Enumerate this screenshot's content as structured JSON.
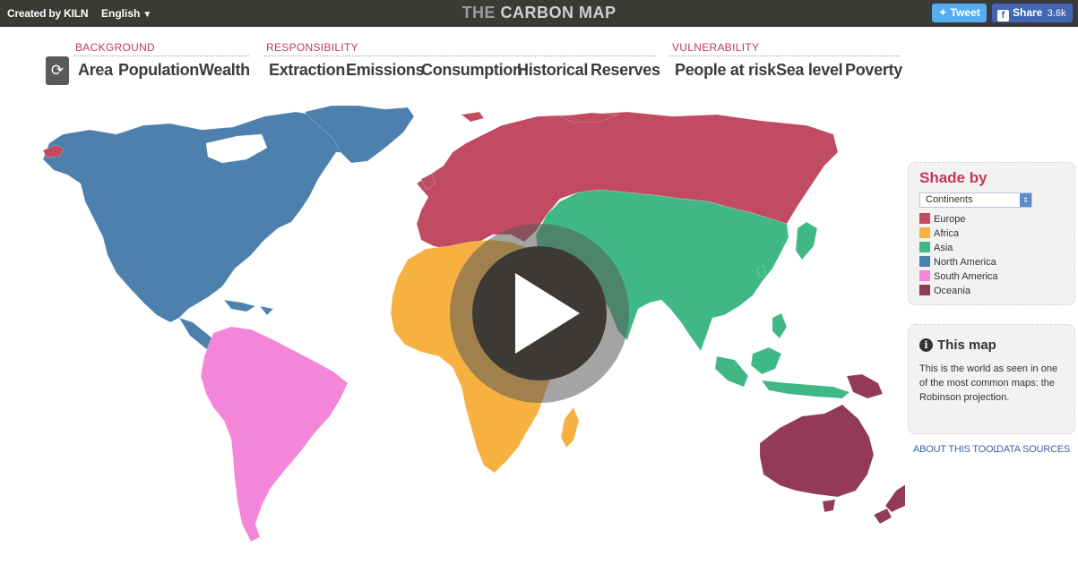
{
  "topbar": {
    "created_by": "Created by",
    "brand": "KILN",
    "language": "English",
    "title_prefix": "THE",
    "title_main": "CARBON MAP",
    "tweet_label": "Tweet",
    "share_label": "Share",
    "share_count": "3.6k"
  },
  "nav": {
    "groups": [
      {
        "label": "BACKGROUND",
        "items": [
          "Area",
          "Population",
          "Wealth"
        ]
      },
      {
        "label": "RESPONSIBILITY",
        "items": [
          "Extraction",
          "Emissions",
          "Consumption",
          "Historical",
          "Reserves"
        ]
      },
      {
        "label": "VULNERABILITY",
        "items": [
          "People at risk",
          "Sea level",
          "Poverty"
        ]
      }
    ]
  },
  "shade_panel": {
    "title": "Shade by",
    "selected": "Continents",
    "legend": [
      {
        "label": "Europe",
        "color": "#c14b60"
      },
      {
        "label": "Africa",
        "color": "#f6b141"
      },
      {
        "label": "Asia",
        "color": "#3fb885"
      },
      {
        "label": "North America",
        "color": "#4d80ad"
      },
      {
        "label": "South America",
        "color": "#f386d9"
      },
      {
        "label": "Oceania",
        "color": "#923a57"
      }
    ]
  },
  "info_panel": {
    "title": "This map",
    "text": "This is the world as seen in one of the most common maps: the Robinson projection."
  },
  "footer": {
    "about": "ABOUT THIS TOOL",
    "sources": "DATA SOURCES"
  },
  "colors": {
    "europe": "#c14b60",
    "africa": "#f6b141",
    "asia": "#3fb885",
    "north_america": "#4d80ad",
    "south_america": "#f386d9",
    "oceania": "#923a57"
  }
}
